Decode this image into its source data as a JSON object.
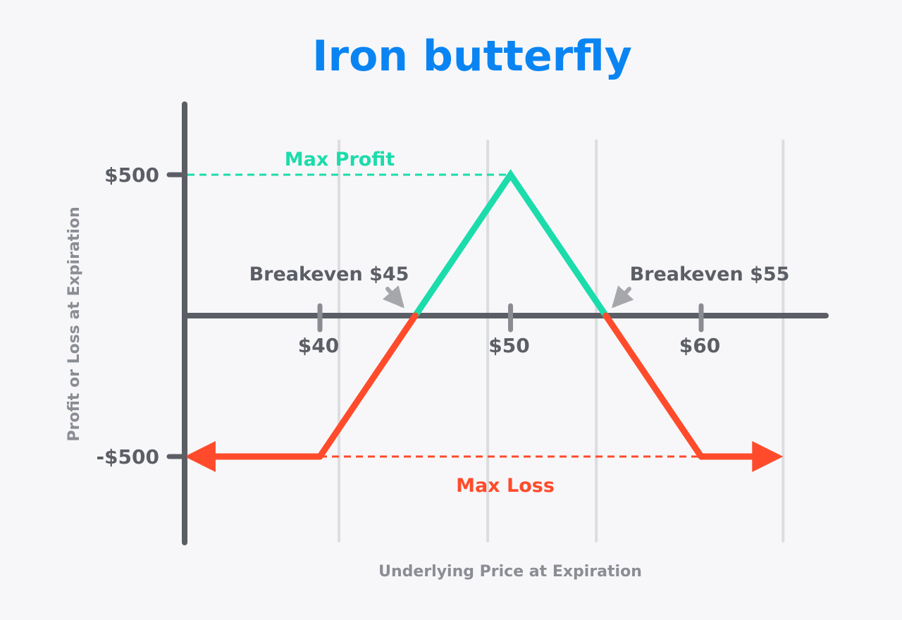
{
  "colors": {
    "title": "#0a84f2",
    "profit": "#1bdcaa",
    "loss": "#ff4b2b",
    "axis": "#5c5e66",
    "grid": "#dcdde0",
    "arrow": "#a6a7ab",
    "axis_title": "#8b8d94"
  },
  "chart_data": {
    "type": "line",
    "title": "Iron butterfly",
    "xlabel": "Underlying Price at Expiration",
    "ylabel": "Profit or Loss at Expiration",
    "x_ticks": [
      {
        "value": 40,
        "label": "$40"
      },
      {
        "value": 50,
        "label": "$50"
      },
      {
        "value": 60,
        "label": "$60"
      }
    ],
    "y_ticks": [
      {
        "value": 500,
        "label": "$500"
      },
      {
        "value": -500,
        "label": "-$500"
      }
    ],
    "grid_x": [
      41,
      48.8,
      54.5,
      64.3
    ],
    "series": [
      {
        "kind": "payoff",
        "points": [
          [
            40,
            -500
          ],
          [
            45,
            0
          ],
          [
            50,
            500
          ],
          [
            55,
            0
          ],
          [
            60,
            -500
          ]
        ],
        "extends_left_to": 32.9,
        "extends_right_to": 64.3
      }
    ],
    "annotations": {
      "max_profit": {
        "label": "Max Profit",
        "value": 500
      },
      "max_loss": {
        "label": "Max Loss",
        "value": -500
      },
      "breakeven_low": {
        "label": "Breakeven $45",
        "x": 45
      },
      "breakeven_high": {
        "label": "Breakeven $55",
        "x": 55
      }
    }
  }
}
